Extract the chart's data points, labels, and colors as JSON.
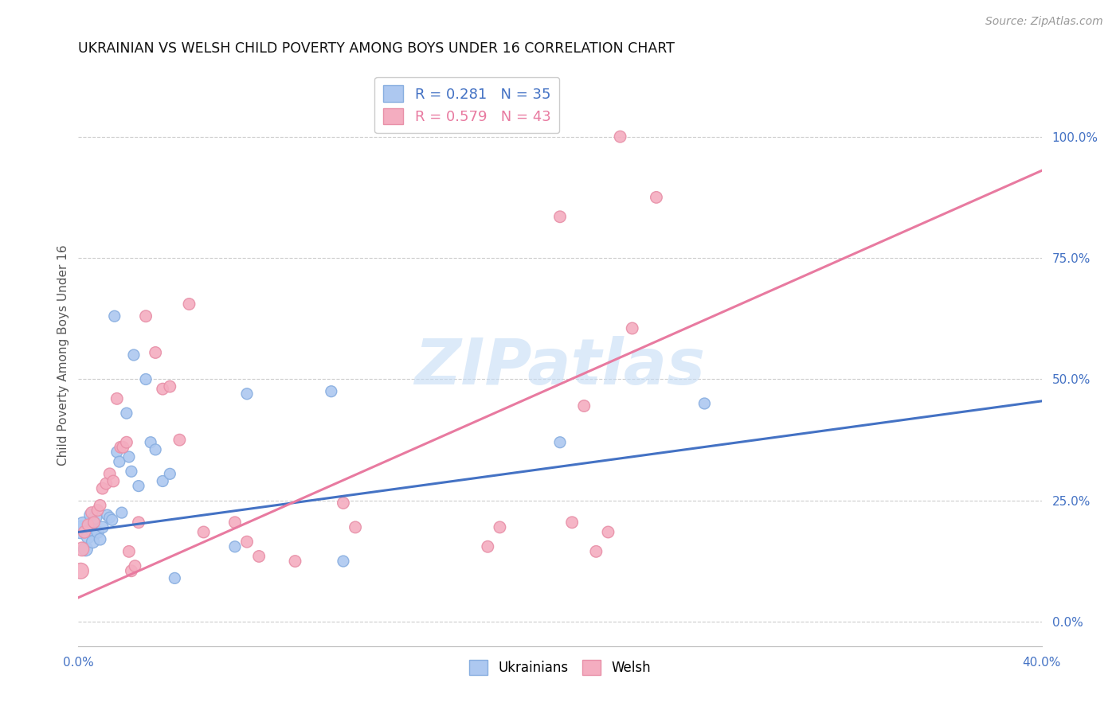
{
  "title": "UKRAINIAN VS WELSH CHILD POVERTY AMONG BOYS UNDER 16 CORRELATION CHART",
  "source": "Source: ZipAtlas.com",
  "ylabel": "Child Poverty Among Boys Under 16",
  "ylabel_right_ticks": [
    "0.0%",
    "25.0%",
    "50.0%",
    "75.0%",
    "100.0%"
  ],
  "ylabel_right_vals": [
    0.0,
    25.0,
    50.0,
    75.0,
    100.0
  ],
  "watermark_text": "ZIPatlas",
  "xlim": [
    0.0,
    40.0
  ],
  "ylim": [
    -5.0,
    115.0
  ],
  "ukrainians_x": [
    0.1,
    0.2,
    0.3,
    0.4,
    0.5,
    0.55,
    0.6,
    0.7,
    0.8,
    0.9,
    1.0,
    1.2,
    1.3,
    1.4,
    1.5,
    1.6,
    1.7,
    1.8,
    2.0,
    2.1,
    2.2,
    2.3,
    2.5,
    2.8,
    3.0,
    3.2,
    3.5,
    3.8,
    4.0,
    6.5,
    7.0,
    10.5,
    11.0,
    20.0,
    26.0
  ],
  "ukrainians_y": [
    19.0,
    20.0,
    15.0,
    17.5,
    22.0,
    19.0,
    16.5,
    21.5,
    18.5,
    17.0,
    19.5,
    22.0,
    21.5,
    21.0,
    63.0,
    35.0,
    33.0,
    22.5,
    43.0,
    34.0,
    31.0,
    55.0,
    28.0,
    50.0,
    37.0,
    35.5,
    29.0,
    30.5,
    9.0,
    15.5,
    47.0,
    47.5,
    12.5,
    37.0,
    45.0
  ],
  "ukrainian_sizes": [
    260,
    200,
    160,
    140,
    120,
    130,
    130,
    140,
    120,
    110,
    110,
    100,
    100,
    100,
    100,
    100,
    100,
    100,
    100,
    100,
    100,
    100,
    100,
    100,
    100,
    100,
    100,
    100,
    100,
    100,
    100,
    100,
    100,
    100,
    100
  ],
  "welsh_x": [
    0.1,
    0.15,
    0.25,
    0.4,
    0.55,
    0.65,
    0.8,
    0.9,
    1.0,
    1.15,
    1.3,
    1.45,
    1.6,
    1.75,
    1.85,
    2.0,
    2.1,
    2.2,
    2.35,
    2.5,
    2.8,
    3.2,
    3.5,
    3.8,
    4.2,
    4.6,
    5.2,
    6.5,
    7.0,
    7.5,
    9.0,
    11.0,
    11.5,
    17.0,
    17.5,
    20.0,
    20.5,
    21.0,
    21.5,
    22.0,
    22.5,
    23.0,
    24.0
  ],
  "welsh_y": [
    10.5,
    15.0,
    18.5,
    20.0,
    22.5,
    20.5,
    23.0,
    24.0,
    27.5,
    28.5,
    30.5,
    29.0,
    46.0,
    36.0,
    36.0,
    37.0,
    14.5,
    10.5,
    11.5,
    20.5,
    63.0,
    55.5,
    48.0,
    48.5,
    37.5,
    65.5,
    18.5,
    20.5,
    16.5,
    13.5,
    12.5,
    24.5,
    19.5,
    15.5,
    19.5,
    83.5,
    20.5,
    44.5,
    14.5,
    18.5,
    100.0,
    60.5,
    87.5
  ],
  "welsh_sizes": [
    200,
    160,
    120,
    110,
    110,
    110,
    110,
    110,
    110,
    110,
    110,
    110,
    110,
    110,
    110,
    110,
    110,
    110,
    110,
    110,
    110,
    110,
    110,
    110,
    110,
    110,
    110,
    110,
    110,
    110,
    110,
    110,
    110,
    110,
    110,
    110,
    110,
    110,
    110,
    110,
    110,
    110,
    110
  ],
  "blue_line_x": [
    0.0,
    40.0
  ],
  "blue_line_y": [
    18.5,
    45.5
  ],
  "pink_line_x": [
    0.0,
    40.0
  ],
  "pink_line_y": [
    5.0,
    93.0
  ],
  "line_color_blue": "#4472c4",
  "line_color_pink": "#e87aa0",
  "scatter_color_blue": "#adc8f0",
  "scatter_color_pink": "#f4adc0",
  "scatter_edge_blue": "#88aee0",
  "scatter_edge_pink": "#e890a8",
  "legend_r1": "R = ",
  "legend_v1": "0.281",
  "legend_n1": "   N = ",
  "legend_nv1": "35",
  "legend_r2": "R = ",
  "legend_v2": "0.579",
  "legend_n2": "   N = ",
  "legend_nv2": "43",
  "bottom_label1": "Ukrainians",
  "bottom_label2": "Welsh"
}
